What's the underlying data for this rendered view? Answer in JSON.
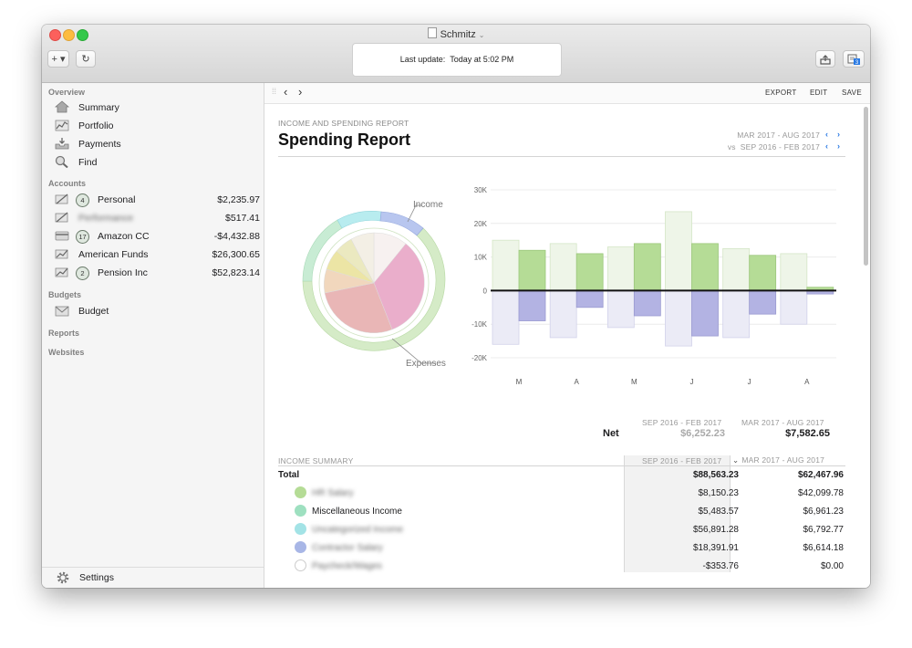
{
  "window": {
    "title": "Schmitz"
  },
  "toolbar": {
    "add_label": "+ ▾",
    "refresh_label": "↻",
    "status_label": "Last update:",
    "status_value": "Today at 5:02 PM",
    "share_icon": "share-icon",
    "calendar_badge": "3"
  },
  "sidebar": {
    "overview_heading": "Overview",
    "overview_items": [
      {
        "label": "Summary",
        "icon": "house-icon"
      },
      {
        "label": "Portfolio",
        "icon": "chart-icon"
      },
      {
        "label": "Payments",
        "icon": "inbox-tray-icon"
      },
      {
        "label": "Find",
        "icon": "magnifier-icon"
      }
    ],
    "accounts_heading": "Accounts",
    "accounts": [
      {
        "badge": "4",
        "label": "Personal",
        "amount": "$2,235.97"
      },
      {
        "badge": "",
        "label": "Performance",
        "amount": "$517.41"
      },
      {
        "badge": "17",
        "label": "Amazon CC",
        "amount": "-$4,432.88"
      },
      {
        "badge": "",
        "label": "American Funds",
        "amount": "$26,300.65"
      },
      {
        "badge": "2",
        "label": "Pension Inc",
        "amount": "$52,823.14"
      }
    ],
    "budgets_heading": "Budgets",
    "budget_item": "Budget",
    "reports_heading": "Reports",
    "websites_heading": "Websites",
    "settings_label": "Settings"
  },
  "content_toolbar": {
    "export": "EXPORT",
    "edit": "EDIT",
    "save": "SAVE"
  },
  "report": {
    "label": "INCOME AND SPENDING REPORT",
    "title": "Spending Report",
    "current_range": "MAR 2017 - AUG 2017",
    "vs_label": "vs",
    "compare_range": "SEP 2016 - FEB 2017",
    "pie_income_label": "Income",
    "pie_expenses_label": "Expenses"
  },
  "chart_data": {
    "type": "bar",
    "categories": [
      "M",
      "A",
      "M",
      "J",
      "J",
      "A"
    ],
    "yticks": [
      "30K",
      "20K",
      "10K",
      "0",
      "-10K",
      "-20K"
    ],
    "ylim": [
      -20000,
      30000
    ],
    "series": [
      {
        "values": [
          15000,
          14000,
          13000,
          23500,
          12500,
          11000
        ]
      },
      {
        "values": [
          -16000,
          -14000,
          -11000,
          -16500,
          -14000,
          -10000
        ]
      },
      {
        "values": [
          12000,
          11000,
          14000,
          14000,
          10500,
          1000
        ]
      },
      {
        "values": [
          -9000,
          -5000,
          -7500,
          -13500,
          -7000,
          -1000
        ]
      }
    ],
    "colors": {
      "income_prev": "#eef5e8",
      "income_cur": "#b5dc96",
      "exp_prev": "#ebebf6",
      "exp_cur": "#b3b3e3"
    }
  },
  "net": {
    "prev_header": "SEP 2016 - FEB 2017",
    "cur_header": "MAR 2017 - AUG 2017",
    "label": "Net",
    "prev_value": "$6,252.23",
    "cur_value": "$7,582.65"
  },
  "income_summary": {
    "header": "INCOME SUMMARY",
    "col1": "SEP 2016 - FEB 2017",
    "col2": "MAR 2017 - AUG 2017",
    "total_label": "Total",
    "total_prev": "$88,563.23",
    "total_cur": "$62,467.96",
    "rows": [
      {
        "name": "HR Salary",
        "prev": "$8,150.23",
        "cur": "$42,099.78",
        "color": "#b5dc96",
        "blurred": true
      },
      {
        "name": "Miscellaneous Income",
        "prev": "$5,483.57",
        "cur": "$6,961.23",
        "color": "#9ee0c0",
        "blurred": false
      },
      {
        "name": "Uncategorized Income",
        "prev": "$56,891.28",
        "cur": "$6,792.77",
        "color": "#a3e3e6",
        "blurred": true
      },
      {
        "name": "Contractor Salary",
        "prev": "$18,391.91",
        "cur": "$6,614.18",
        "color": "#a8b6e6",
        "blurred": true
      },
      {
        "name": "Paycheck/Wages",
        "prev": "-$353.76",
        "cur": "$0.00",
        "color": "#ffffff",
        "blurred": true
      }
    ]
  }
}
